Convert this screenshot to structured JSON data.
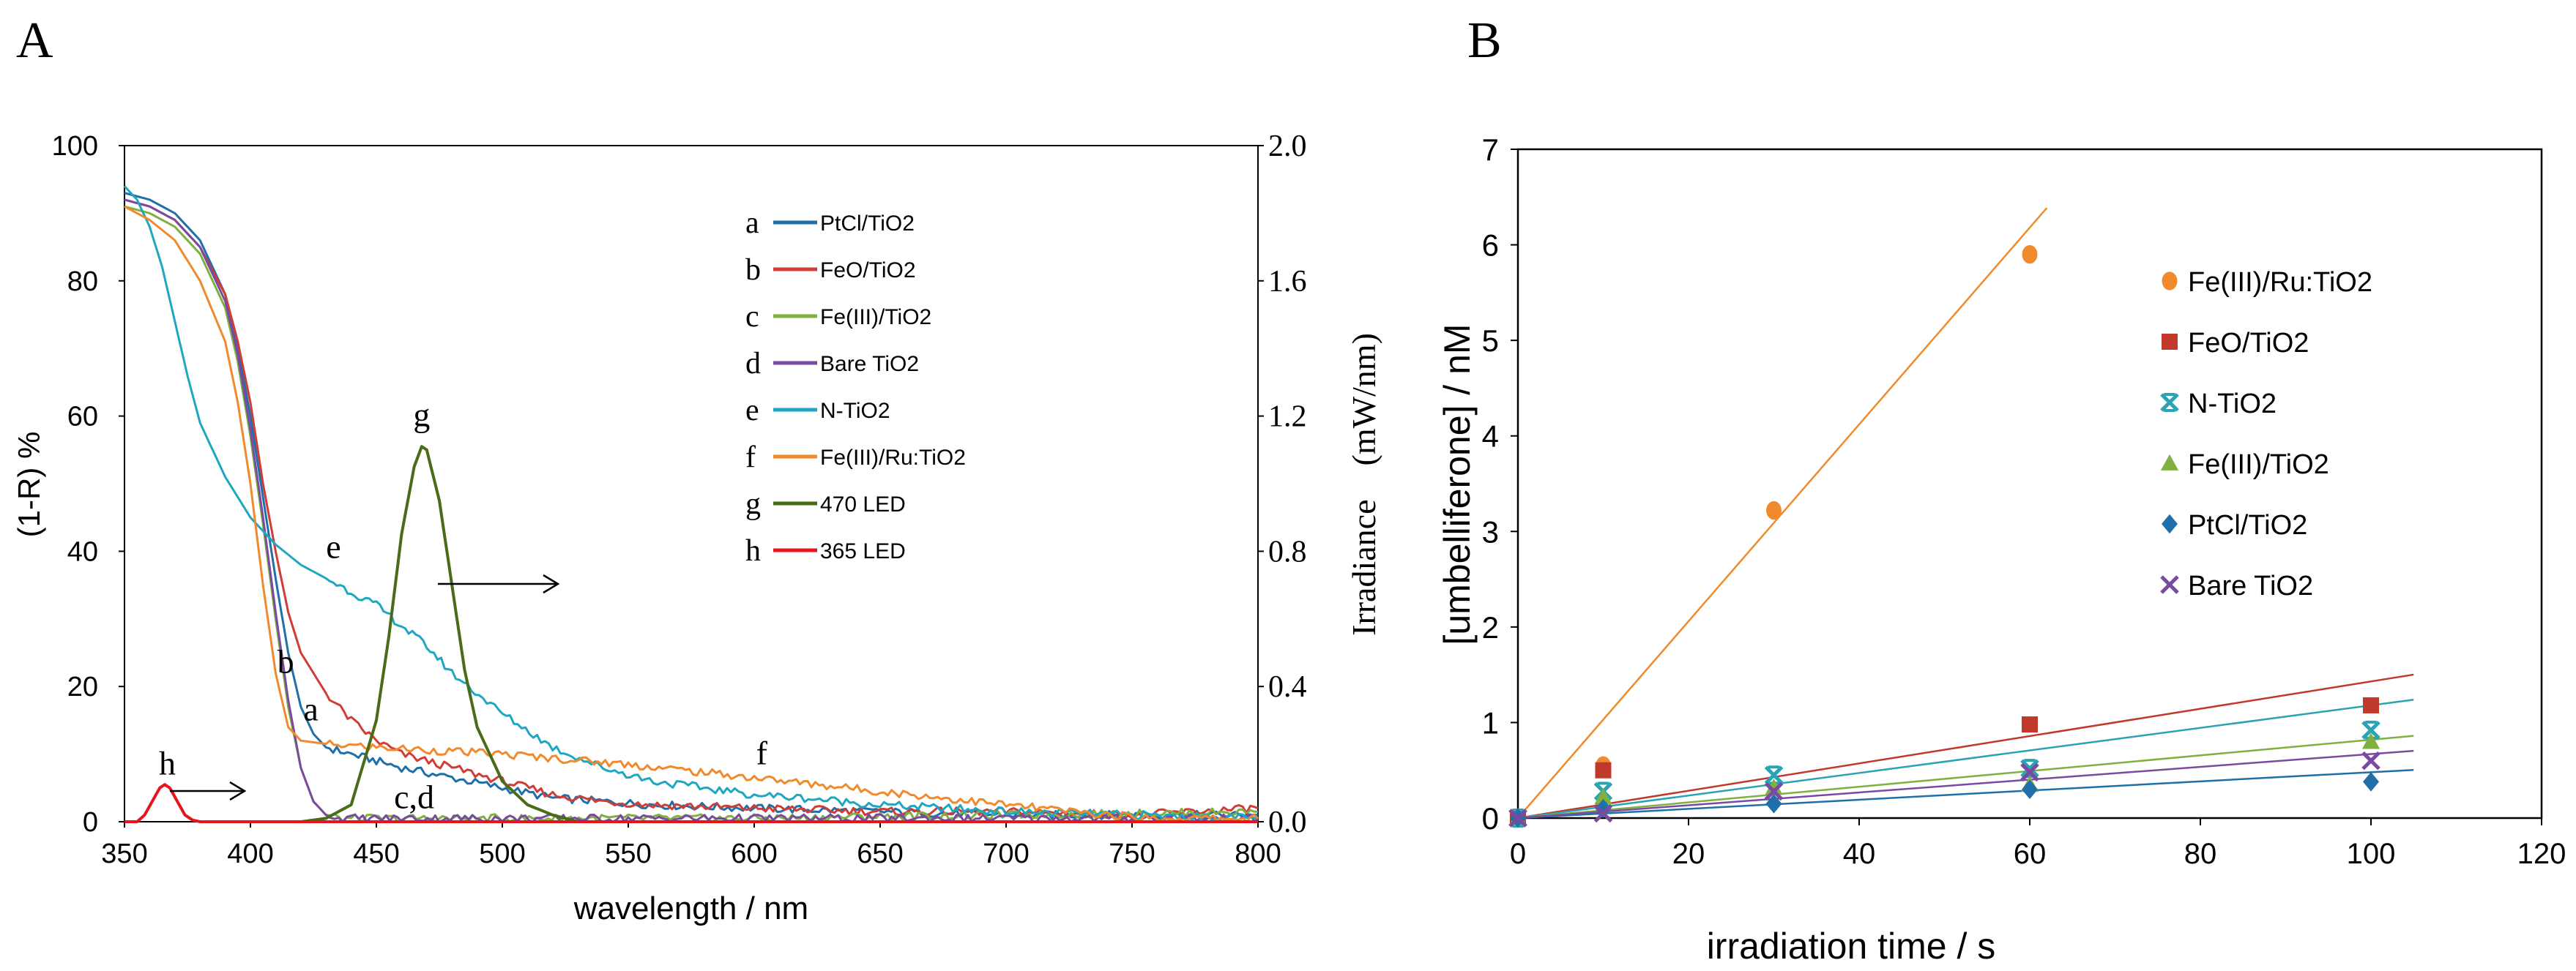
{
  "panel_a": {
    "letter": "A",
    "chart_data": {
      "type": "line",
      "xlabel": "wavelength / nm",
      "ylabel_left": "(1-R) %",
      "ylabel_right": "Irradiance　(mW/nm)",
      "xlim": [
        350,
        800
      ],
      "ylim_left": [
        0,
        100
      ],
      "ylim_right": [
        0,
        2.0
      ],
      "x_ticks": [
        "350",
        "400",
        "450",
        "500",
        "550",
        "600",
        "650",
        "700",
        "750",
        "800"
      ],
      "y_ticks_left": [
        "0",
        "20",
        "40",
        "60",
        "80",
        "100"
      ],
      "y_ticks_right": [
        "0.0",
        "0.4",
        "0.8",
        "1.2",
        "1.6",
        "2.0"
      ],
      "series": [
        {
          "key": "a",
          "name": "PtCl/TiO2",
          "color": "#1f6fa8",
          "axis": "left",
          "x": [
            350,
            360,
            370,
            380,
            390,
            395,
            400,
            405,
            410,
            415,
            420,
            425,
            430,
            440,
            450,
            460,
            480,
            500,
            520,
            540,
            560,
            600,
            650,
            700,
            750,
            800
          ],
          "y": [
            93,
            92,
            90,
            86,
            78,
            70,
            60,
            48,
            36,
            25,
            17,
            13,
            11,
            10,
            9,
            8,
            6.5,
            5,
            3.5,
            3,
            2.5,
            2,
            1.5,
            1,
            1,
            1
          ]
        },
        {
          "key": "b",
          "name": "FeO/TiO2",
          "color": "#d03c36",
          "axis": "left",
          "x": [
            350,
            360,
            370,
            380,
            390,
            395,
            400,
            405,
            410,
            415,
            420,
            425,
            430,
            440,
            450,
            460,
            480,
            500,
            520,
            540,
            560,
            600,
            650,
            700,
            750,
            800
          ],
          "y": [
            92,
            91,
            89,
            85,
            78,
            71,
            62,
            50,
            40,
            31,
            25,
            22,
            19,
            15,
            12,
            10,
            8,
            6,
            4,
            3,
            2.5,
            2,
            1.5,
            1.5,
            1,
            2
          ]
        },
        {
          "key": "c",
          "name": "Fe(III)/TiO2",
          "color": "#7fb040",
          "axis": "left",
          "x": [
            350,
            360,
            370,
            380,
            390,
            395,
            400,
            405,
            410,
            415,
            420,
            425,
            430,
            435,
            440,
            460,
            500,
            550,
            600,
            650,
            700,
            750,
            800
          ],
          "y": [
            91,
            90,
            88,
            84,
            76,
            68,
            57,
            44,
            30,
            17,
            8,
            3,
            1,
            0.5,
            0.5,
            0.5,
            0.5,
            0.5,
            0.5,
            0.8,
            1,
            1.2,
            1.5
          ]
        },
        {
          "key": "d",
          "name": "Bare TiO2",
          "color": "#7a4aa0",
          "axis": "left",
          "x": [
            350,
            360,
            370,
            380,
            390,
            395,
            400,
            405,
            410,
            415,
            420,
            425,
            430,
            435,
            440,
            460,
            500,
            550,
            600,
            650,
            700,
            750,
            800
          ],
          "y": [
            92,
            91,
            89,
            85,
            77,
            69,
            58,
            45,
            31,
            18,
            8,
            3,
            1,
            0.5,
            0.5,
            0.5,
            0.5,
            0.5,
            0.5,
            0.5,
            0.5,
            0.5,
            0.5
          ]
        },
        {
          "key": "e",
          "name": "N-TiO2",
          "color": "#1fa7c2",
          "axis": "left",
          "x": [
            350,
            355,
            360,
            365,
            370,
            375,
            380,
            390,
            400,
            410,
            420,
            430,
            440,
            450,
            460,
            470,
            480,
            500,
            520,
            540,
            560,
            580,
            600,
            620,
            650,
            700,
            750,
            800
          ],
          "y": [
            94,
            92,
            88,
            82,
            74,
            66,
            59,
            51,
            45,
            41,
            38,
            36,
            34,
            32,
            29,
            26,
            22,
            16,
            11,
            8,
            6,
            5,
            4,
            3.5,
            2.5,
            1.5,
            1,
            0.5
          ]
        },
        {
          "key": "f",
          "name": "Fe(III)/Ru:TiO2",
          "color": "#f08a2c",
          "axis": "left",
          "x": [
            350,
            360,
            370,
            380,
            390,
            395,
            400,
            405,
            410,
            415,
            420,
            430,
            450,
            500,
            550,
            600,
            650,
            700,
            740,
            760,
            800
          ],
          "y": [
            91,
            89,
            86,
            80,
            71,
            62,
            50,
            35,
            22,
            14,
            12,
            11.5,
            11,
            10,
            8.5,
            6.5,
            4.5,
            2.5,
            1,
            0.5,
            0.5
          ]
        },
        {
          "key": "g",
          "name": "470 LED",
          "color": "#4a6b18",
          "axis": "right",
          "x": [
            420,
            430,
            440,
            450,
            455,
            460,
            465,
            468,
            470,
            475,
            480,
            485,
            490,
            500,
            510,
            520,
            530,
            800
          ],
          "y": [
            0,
            0.01,
            0.05,
            0.3,
            0.55,
            0.85,
            1.05,
            1.11,
            1.1,
            0.95,
            0.7,
            0.45,
            0.28,
            0.12,
            0.05,
            0.02,
            0,
            0
          ]
        },
        {
          "key": "h",
          "name": "365 LED",
          "color": "#e8141c",
          "axis": "right",
          "x": [
            350,
            355,
            358,
            361,
            364,
            366,
            368,
            371,
            374,
            377,
            380,
            385,
            800
          ],
          "y": [
            0,
            0,
            0.02,
            0.06,
            0.1,
            0.11,
            0.1,
            0.06,
            0.02,
            0.005,
            0,
            0,
            0
          ]
        }
      ],
      "annotations": [
        {
          "text": "a",
          "x": 424,
          "y": 15
        },
        {
          "text": "b",
          "x": 414,
          "y": 22
        },
        {
          "text": "c,d",
          "x": 465,
          "y": 2
        },
        {
          "text": "e",
          "x": 433,
          "y": 39
        },
        {
          "text": "f",
          "x": 603,
          "y": 8.5
        },
        {
          "text": "g",
          "x": 468,
          "y": 58.5
        },
        {
          "text": "h",
          "x": 367,
          "y": 7
        }
      ],
      "legend_letters": [
        "a",
        "b",
        "c",
        "d",
        "e",
        "f",
        "g",
        "h"
      ]
    }
  },
  "panel_b": {
    "letter": "B",
    "chart_data": {
      "type": "scatter",
      "xlabel": "irradiation time /  s",
      "ylabel": "[umbelliferone] / nM",
      "xlim": [
        0,
        120
      ],
      "ylim": [
        0,
        7
      ],
      "x_ticks": [
        "0",
        "20",
        "40",
        "60",
        "80",
        "100",
        "120"
      ],
      "y_ticks": [
        "0",
        "1",
        "2",
        "3",
        "4",
        "5",
        "6",
        "7"
      ],
      "series": [
        {
          "name": "Fe(III)/Ru:TiO2",
          "color": "#f08a2c",
          "marker": "circle",
          "x": [
            0,
            10,
            30,
            60
          ],
          "y": [
            0,
            0.55,
            3.22,
            5.9
          ],
          "fit_slope": 0.103,
          "fit_x_end": 62
        },
        {
          "name": "FeO/TiO2",
          "color": "#c0392b",
          "marker": "square",
          "x": [
            0,
            10,
            60,
            100
          ],
          "y": [
            0,
            0.5,
            0.98,
            1.18
          ],
          "fit_slope": 0.0143,
          "fit_x_end": 105
        },
        {
          "name": "N-TiO2",
          "color": "#2aa3b3",
          "marker": "star",
          "x": [
            0,
            10,
            30,
            60,
            100
          ],
          "y": [
            0,
            0.28,
            0.45,
            0.52,
            0.92
          ],
          "fit_slope": 0.0118,
          "fit_x_end": 105
        },
        {
          "name": "Fe(III)/TiO2",
          "color": "#7fb040",
          "marker": "triangle",
          "x": [
            0,
            10,
            30,
            60,
            100
          ],
          "y": [
            0,
            0.22,
            0.32,
            0.35,
            0.8
          ],
          "fit_slope": 0.0082,
          "fit_x_end": 105
        },
        {
          "name": "PtCl/TiO2",
          "color": "#1f6fa8",
          "marker": "diamond",
          "x": [
            0,
            10,
            30,
            60,
            100
          ],
          "y": [
            0,
            0.1,
            0.15,
            0.3,
            0.38
          ],
          "fit_slope": 0.0048,
          "fit_x_end": 105
        },
        {
          "name": "Bare TiO2",
          "color": "#7a4aa0",
          "marker": "x",
          "x": [
            0,
            10,
            30,
            60,
            100
          ],
          "y": [
            0,
            0.05,
            0.28,
            0.48,
            0.6
          ],
          "fit_slope": 0.0067,
          "fit_x_end": 105
        }
      ]
    }
  }
}
